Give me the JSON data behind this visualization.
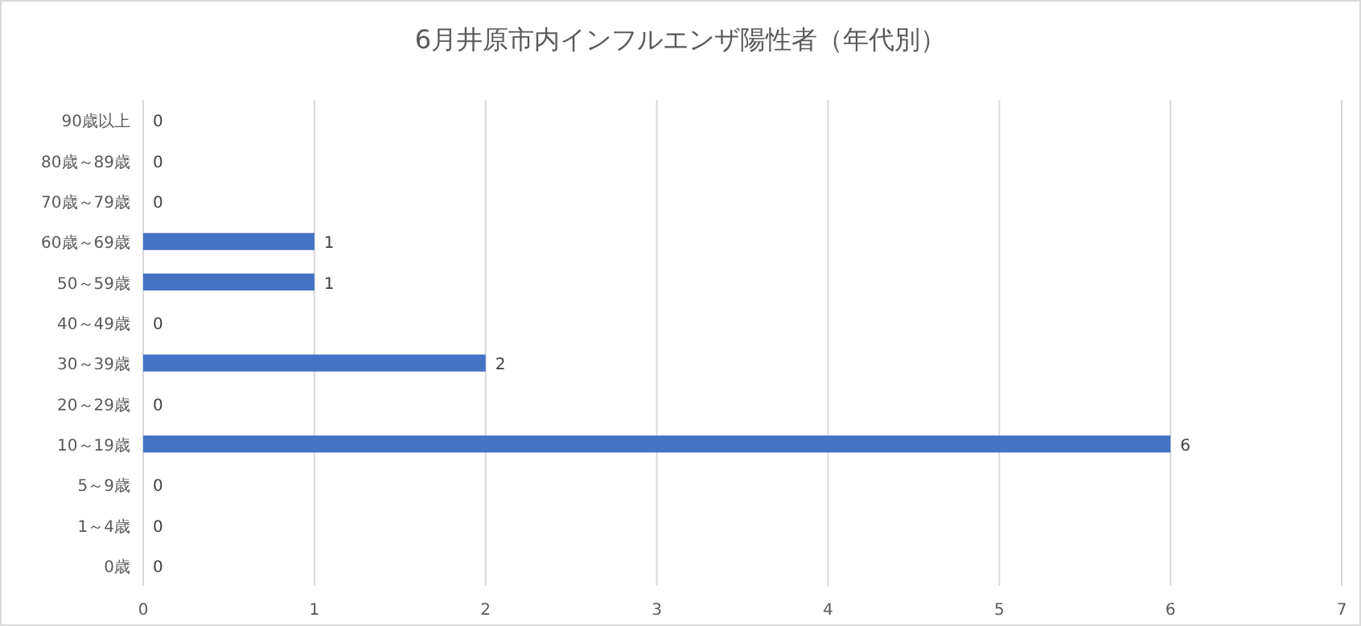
{
  "chart_data": {
    "type": "bar",
    "orientation": "horizontal",
    "title": "6月井原市内インフルエンザ陽性者（年代別）",
    "categories": [
      "90歳以上",
      "80歳～89歳",
      "70歳～79歳",
      "60歳～69歳",
      "50～59歳",
      "40～49歳",
      "30～39歳",
      "20～29歳",
      "10～19歳",
      "5～9歳",
      "1～4歳",
      "0歳"
    ],
    "values": [
      0,
      0,
      0,
      1,
      1,
      0,
      2,
      0,
      6,
      0,
      0,
      0
    ],
    "color": "#4472c4",
    "xlim": [
      0,
      7
    ],
    "xticks": [
      0,
      1,
      2,
      3,
      4,
      5,
      6,
      7
    ],
    "grid": "x",
    "data_labels": true
  }
}
